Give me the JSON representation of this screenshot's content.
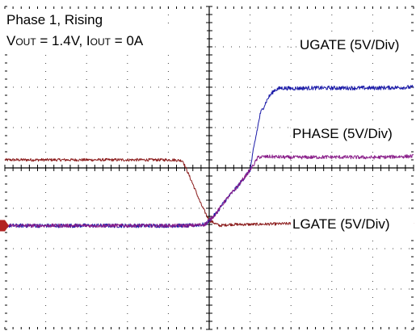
{
  "chart_data": {
    "type": "line",
    "title": "Phase 1, Rising",
    "subtitle": {
      "v_label": "V",
      "v_sub": "OUT",
      "v_rest": " = 1.4V, ",
      "i_label": "I",
      "i_sub": "OUT",
      "i_rest": " = 0A"
    },
    "grid": true,
    "divisions": {
      "x": 10,
      "y": 8
    },
    "xlabel": "",
    "ylabel": "",
    "xlim": [
      0,
      10
    ],
    "ylim": [
      0,
      8
    ],
    "ground_marker_color": "#b22222",
    "series": [
      {
        "name": "UGATE (5V/Div)",
        "color": "#1a1aa8",
        "x": [
          0,
          4.5,
          4.9,
          5.15,
          5.4,
          5.7,
          6.0,
          6.1,
          6.25,
          6.45,
          6.6,
          6.75,
          7.0,
          7.5,
          8.0,
          9.0,
          10.0
        ],
        "values": [
          2.57,
          2.57,
          2.6,
          2.85,
          3.2,
          3.55,
          3.95,
          4.55,
          5.35,
          5.75,
          5.93,
          5.98,
          5.97,
          5.98,
          5.98,
          5.98,
          6.0
        ]
      },
      {
        "name": "PHASE (5V/Div)",
        "color": "#8a1f8a",
        "x": [
          0,
          4.5,
          4.9,
          5.15,
          5.4,
          5.7,
          6.0,
          6.1,
          6.2,
          6.5,
          7.0,
          8.0,
          9.0,
          10.0
        ],
        "values": [
          2.57,
          2.57,
          2.6,
          2.85,
          3.2,
          3.55,
          3.95,
          4.1,
          4.27,
          4.28,
          4.26,
          4.27,
          4.26,
          4.29
        ]
      },
      {
        "name": "LGATE (5V/Div)",
        "color": "#8b1c1c",
        "x": [
          0,
          4.1,
          4.35,
          4.6,
          4.8,
          5.0,
          5.25,
          5.5,
          6.0,
          7.0,
          8.0,
          9.0,
          10.0
        ],
        "values": [
          4.2,
          4.2,
          4.18,
          3.6,
          3.1,
          2.7,
          2.57,
          2.6,
          2.6,
          2.62,
          2.62,
          2.6,
          2.6
        ]
      }
    ]
  }
}
